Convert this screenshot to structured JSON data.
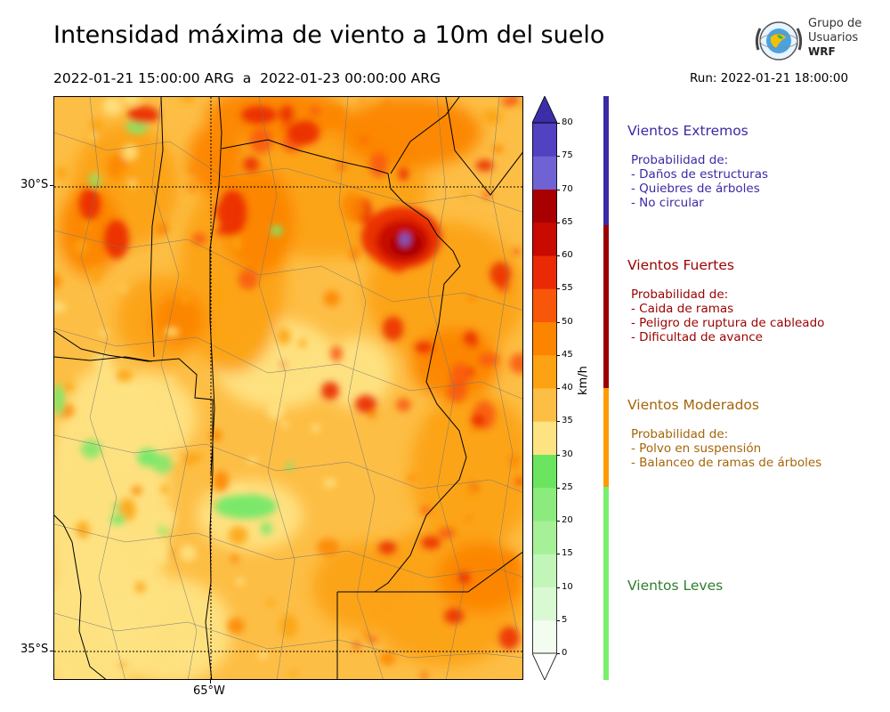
{
  "title": "Intensidad máxima de viento a 10m del suelo",
  "period": "2022-01-21 15:00:00 ARG  a  2022-01-23 00:00:00 ARG",
  "run": "Run: 2022-01-21 18:00:00",
  "logo": {
    "line1": "Grupo de",
    "line2": "Usuarios",
    "line3": "WRF"
  },
  "axes": {
    "lat_labels": [
      "30°S",
      "35°S"
    ],
    "lon_labels": [
      "65°W"
    ]
  },
  "colorbar": {
    "unit": "km/h",
    "ticks": [
      "0",
      "5",
      "10",
      "15",
      "20",
      "25",
      "30",
      "35",
      "40",
      "45",
      "50",
      "55",
      "60",
      "65",
      "70",
      "75",
      "80"
    ],
    "colors": [
      "#f2fdf0",
      "#d9f9d2",
      "#c2f6b8",
      "#a6f197",
      "#8bec7d",
      "#6be55f",
      "#fee383",
      "#fdbe45",
      "#fca213",
      "#fc8500",
      "#f85709",
      "#ea2a06",
      "#c80a00",
      "#a80000",
      "#6f62d3",
      "#5042c1",
      "#3b2fa9"
    ]
  },
  "categories": [
    {
      "title": "Vientos Extremos",
      "color": "#3a2ba4",
      "lines": [
        "Probabilidad de:",
        "- Daños de estructuras",
        "- Quiebres de árboles",
        "- No circular"
      ]
    },
    {
      "title": "Vientos Fuertes",
      "color": "#9b0000",
      "lines": [
        "Probabilidad de:",
        "- Caida de ramas",
        "- Peligro de ruptura de cableado",
        "- Dificultad de avance"
      ]
    },
    {
      "title": "Vientos Moderados",
      "color": "#a5650a",
      "lines": [
        "Probabilidad de:",
        "- Polvo en suspensión",
        "- Balanceo de ramas de árboles"
      ]
    },
    {
      "title": "Vientos Leves",
      "color": "#2f7d2f",
      "lines": []
    }
  ],
  "category_bar_colors": [
    "#3a2ba4",
    "#9b0000",
    "#ff9a00",
    "#78f06a"
  ],
  "map_palette": [
    "#fee383",
    "#fdbe45",
    "#fca213",
    "#fc8500",
    "#f85709",
    "#ea2a06",
    "#c80a00",
    "#a80000",
    "#6f62d3",
    "#7be86a"
  ]
}
